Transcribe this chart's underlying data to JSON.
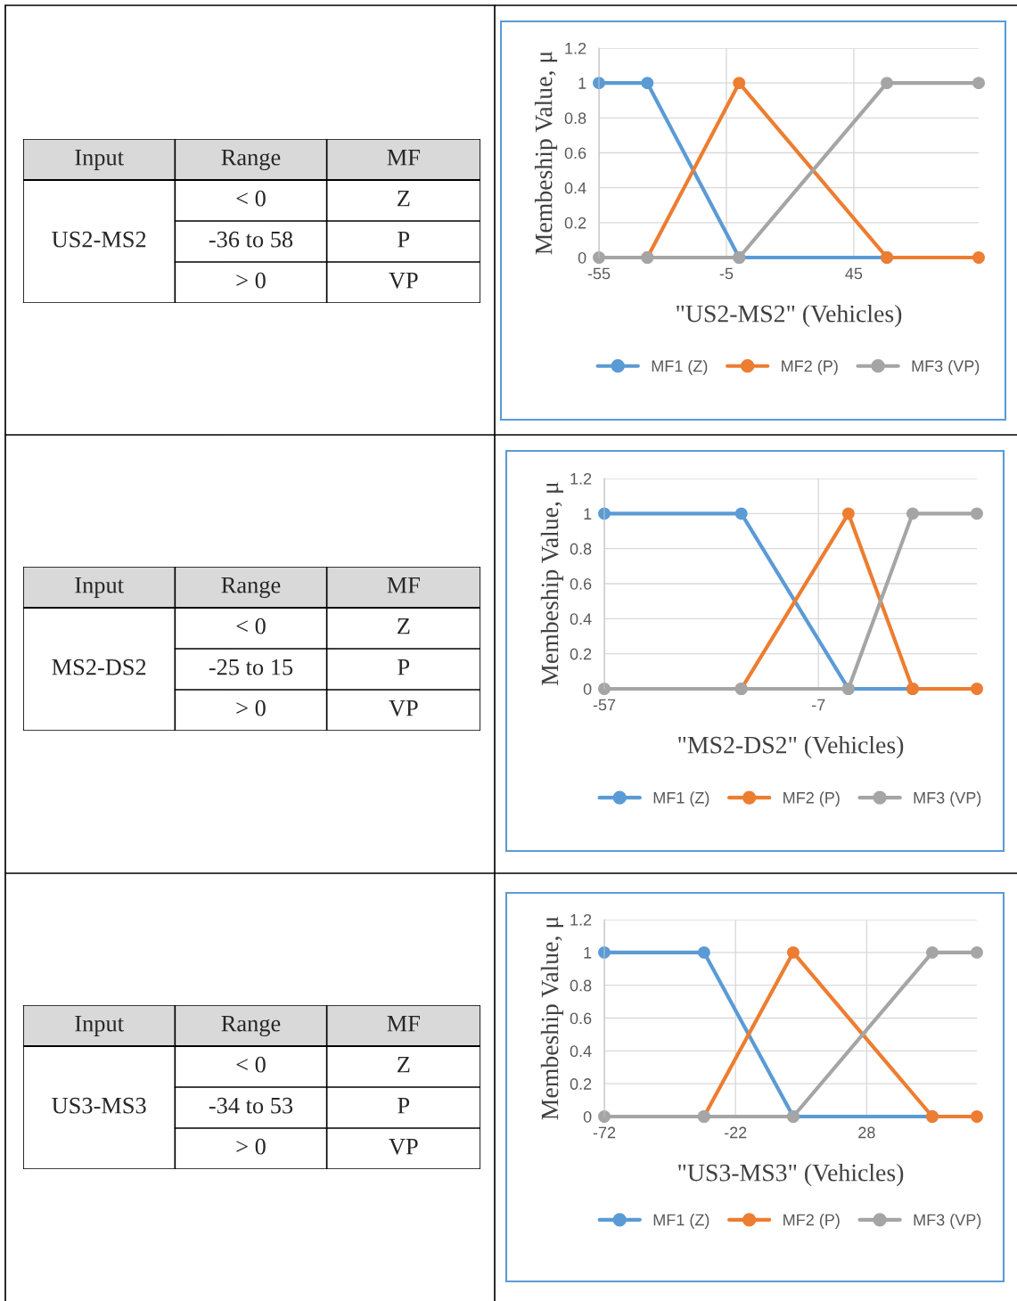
{
  "chart_data": [
    {
      "type": "other",
      "annotations": [
        "Input",
        "Range",
        "MF",
        "US2-MS2",
        "< 0",
        "Z",
        "-36 to 58",
        "P",
        "> 0",
        "VP"
      ]
    },
    {
      "type": "line",
      "xlabel": "\"US2-MS2\" (Vehicles)",
      "ylabel": "Membeship Value, μ",
      "xlim": [
        -55,
        94
      ],
      "xticks": [
        -55,
        -5,
        45
      ],
      "ylim": [
        0,
        1.2
      ],
      "yticks": [
        0,
        0.2,
        0.4,
        0.6,
        0.8,
        1,
        1.2
      ],
      "grid": true,
      "legend": "bottom",
      "marker": "circle",
      "line_style": "solid",
      "series": [
        {
          "name": "MF1 (Z)",
          "color": "#5b9bd5",
          "x": [
            -55,
            -36,
            0,
            58
          ],
          "values": [
            1,
            1,
            0,
            0
          ]
        },
        {
          "name": "MF2 (P)",
          "color": "#ed7d31",
          "x": [
            -36,
            0,
            58,
            94
          ],
          "values": [
            0,
            1,
            0,
            0
          ]
        },
        {
          "name": "MF3 (VP)",
          "color": "#a5a5a5",
          "x": [
            -55,
            -36,
            0,
            58,
            94
          ],
          "values": [
            0,
            0,
            0,
            1,
            1
          ]
        }
      ]
    },
    {
      "type": "other",
      "annotations": [
        "Input",
        "Range",
        "MF",
        "MS2-DS2",
        "< 0",
        "Z",
        "-25 to 15",
        "P",
        "> 0",
        "VP"
      ]
    },
    {
      "type": "line",
      "xlabel": "\"MS2-DS2\" (Vehicles)",
      "ylabel": "Membeship Value, μ",
      "xlim": [
        -57,
        30
      ],
      "xticks": [
        -57,
        -7
      ],
      "ylim": [
        0,
        1.2
      ],
      "yticks": [
        0,
        0.2,
        0.4,
        0.6,
        0.8,
        1,
        1.2
      ],
      "grid": true,
      "legend": "bottom",
      "marker": "circle",
      "line_style": "solid",
      "series": [
        {
          "name": "MF1 (Z)",
          "color": "#5b9bd5",
          "x": [
            -57,
            -25,
            0,
            15
          ],
          "values": [
            1,
            1,
            0,
            0
          ]
        },
        {
          "name": "MF2 (P)",
          "color": "#ed7d31",
          "x": [
            -25,
            0,
            15,
            30
          ],
          "values": [
            0,
            1,
            0,
            0
          ]
        },
        {
          "name": "MF3 (VP)",
          "color": "#a5a5a5",
          "x": [
            -57,
            -25,
            0,
            15,
            30
          ],
          "values": [
            0,
            0,
            0,
            1,
            1
          ]
        }
      ]
    },
    {
      "type": "other",
      "annotations": [
        "Input",
        "Range",
        "MF",
        "US3-MS3",
        "< 0",
        "Z",
        "-34 to 53",
        "P",
        "> 0",
        "VP"
      ]
    },
    {
      "type": "line",
      "xlabel": "\"US3-MS3\" (Vehicles)",
      "ylabel": "Membeship Value, μ",
      "xlim": [
        -72,
        70
      ],
      "xticks": [
        -72,
        -22,
        28
      ],
      "ylim": [
        0,
        1.2
      ],
      "yticks": [
        0,
        0.2,
        0.4,
        0.6,
        0.8,
        1,
        1.2
      ],
      "grid": true,
      "legend": "bottom",
      "marker": "circle",
      "line_style": "solid",
      "series": [
        {
          "name": "MF1 (Z)",
          "color": "#5b9bd5",
          "x": [
            -72,
            -34,
            0,
            53
          ],
          "values": [
            1,
            1,
            0,
            0
          ]
        },
        {
          "name": "MF2 (P)",
          "color": "#ed7d31",
          "x": [
            -34,
            0,
            53,
            70
          ],
          "values": [
            0,
            1,
            0,
            0
          ]
        },
        {
          "name": "MF3 (VP)",
          "color": "#a5a5a5",
          "x": [
            -72,
            -34,
            0,
            53,
            70
          ],
          "values": [
            0,
            0,
            0,
            1,
            1
          ]
        }
      ]
    }
  ]
}
